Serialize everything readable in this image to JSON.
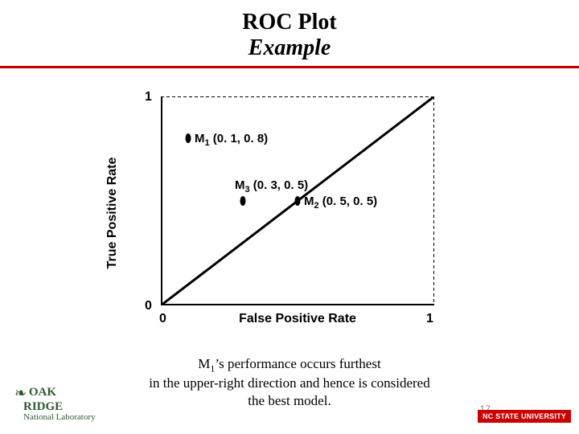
{
  "title": {
    "line1": "ROC Plot",
    "line2": "Example"
  },
  "rule_color": "#c00000",
  "chart": {
    "type": "scatter",
    "xlabel": "False Positive Rate",
    "ylabel": "True Positive Rate",
    "xlim": [
      0,
      1
    ],
    "ylim": [
      0,
      1
    ],
    "xticks": {
      "min": "0",
      "max": "1"
    },
    "yticks": {
      "min": "0",
      "max": "1"
    },
    "axis_color": "#000000",
    "axis_width": 4,
    "guide_dash": "4,3",
    "guide_width": 2,
    "diagonal": {
      "from": [
        0,
        0
      ],
      "to": [
        1,
        1
      ],
      "color": "#000000",
      "width": 3
    },
    "points": [
      {
        "id": "M1",
        "x": 0.1,
        "y": 0.8,
        "label_html": "M<sub>1</sub> (0. 1, 0. 8)",
        "marker_color": "#000000"
      },
      {
        "id": "M2",
        "x": 0.5,
        "y": 0.5,
        "label_html": "M<sub>2</sub> (0. 5, 0. 5)",
        "marker_color": "#000000"
      },
      {
        "id": "M3",
        "x": 0.3,
        "y": 0.5,
        "label_html": "M<sub>3</sub> (0. 3, 0. 5)",
        "marker_color": "#000000"
      }
    ],
    "marker_rx": 3.5,
    "marker_ry": 6,
    "label_fontsize": 15,
    "axis_label_fontsize": 16,
    "background_color": "#ffffff"
  },
  "caption_html": "M<sub>1</sub>’s performance occurs furthest<br>in the upper-right direction and hence is considered<br>the best model.",
  "slide_number": "17",
  "logo_left": {
    "leaf": "❧",
    "line1": "OAK",
    "line2": "RIDGE",
    "sub": "National Laboratory"
  },
  "logo_right": "NC STATE UNIVERSITY"
}
